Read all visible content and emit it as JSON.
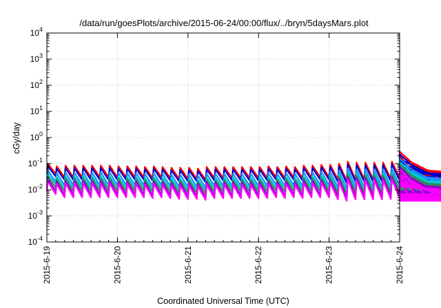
{
  "chart_data": {
    "type": "line",
    "title": "/data/run/goesPlots/archive/2015-06-24/00:00/flux/../bryn/5daysMars.plot",
    "xlabel": "Coordinated Universal Time (UTC)",
    "ylabel": "cGy/day",
    "y_scale": "log",
    "ylim_exponents": [
      -4,
      4
    ],
    "y_ticks": [
      {
        "base": "10",
        "exp": "-4"
      },
      {
        "base": "10",
        "exp": "-3"
      },
      {
        "base": "10",
        "exp": "-2"
      },
      {
        "base": "10",
        "exp": "-1"
      },
      {
        "base": "10",
        "exp": "0"
      },
      {
        "base": "10",
        "exp": "1"
      },
      {
        "base": "10",
        "exp": "2"
      },
      {
        "base": "10",
        "exp": "3"
      },
      {
        "base": "10",
        "exp": "4"
      }
    ],
    "x_ticks": [
      "2015-6-19",
      "2015-6-20",
      "2015-6-21",
      "2015-6-22",
      "2015-6-23",
      "2015-6-24"
    ],
    "xlim_days": [
      0,
      5
    ],
    "grid": true,
    "sawtooth_period_hours": 3,
    "series": [
      {
        "color": "#ff0000",
        "peak": [
          0.1,
          0.08,
          0.085,
          0.085,
          0.085,
          0.085,
          0.085,
          0.085,
          0.08,
          0.08,
          0.08,
          0.075,
          0.08,
          0.075,
          0.07,
          0.07,
          0.07,
          0.065,
          0.075,
          0.075,
          0.075,
          0.075,
          0.075,
          0.075,
          0.075,
          0.08,
          0.075,
          0.08,
          0.075,
          0.085,
          0.085,
          0.09,
          0.09,
          0.1,
          0.12,
          0.11,
          0.11,
          0.11,
          0.11,
          0.12,
          0.14,
          0.16,
          0.19,
          0.29,
          0.19,
          0.13,
          0.1,
          0.095,
          0.09,
          0.085,
          0.08,
          0.075,
          0.07,
          0.065,
          0.065,
          0.065,
          0.065,
          0.065,
          0.065,
          0.065,
          0.065
        ],
        "trough": [
          0.04,
          0.03,
          0.03,
          0.03,
          0.03,
          0.03,
          0.03,
          0.03,
          0.03,
          0.03,
          0.03,
          0.028,
          0.03,
          0.028,
          0.026,
          0.026,
          0.026,
          0.024,
          0.028,
          0.028,
          0.028,
          0.028,
          0.028,
          0.028,
          0.028,
          0.03,
          0.028,
          0.03,
          0.028,
          0.03,
          0.03,
          0.03,
          0.025,
          0.022,
          0.025,
          0.025,
          0.025,
          0.025,
          0.026,
          0.028,
          0.03,
          0.032,
          0.035,
          0.04,
          0.035,
          0.03,
          0.028,
          0.026,
          0.025,
          0.024,
          0.024,
          0.023,
          0.022,
          0.022,
          0.022,
          0.022,
          0.022,
          0.022,
          0.022,
          0.022,
          0.022
        ]
      },
      {
        "color": "#0000cc",
        "factor_peak": 0.8,
        "factor_trough": 0.8
      },
      {
        "color": "#1e90ff",
        "factor_peak": 0.55,
        "factor_trough": 0.5
      },
      {
        "color": "#00cdcd",
        "factor_peak": 0.4,
        "factor_trough": 0.4
      },
      {
        "color": "#2e8b57",
        "factor_peak": 0.32,
        "factor_trough": 0.3
      },
      {
        "color": "#9400d3",
        "factor_peak": 0.26,
        "factor_trough": 0.22
      },
      {
        "color": "#ff00ff",
        "factor_peak": 0.21,
        "factor_trough": 0.17
      }
    ]
  }
}
